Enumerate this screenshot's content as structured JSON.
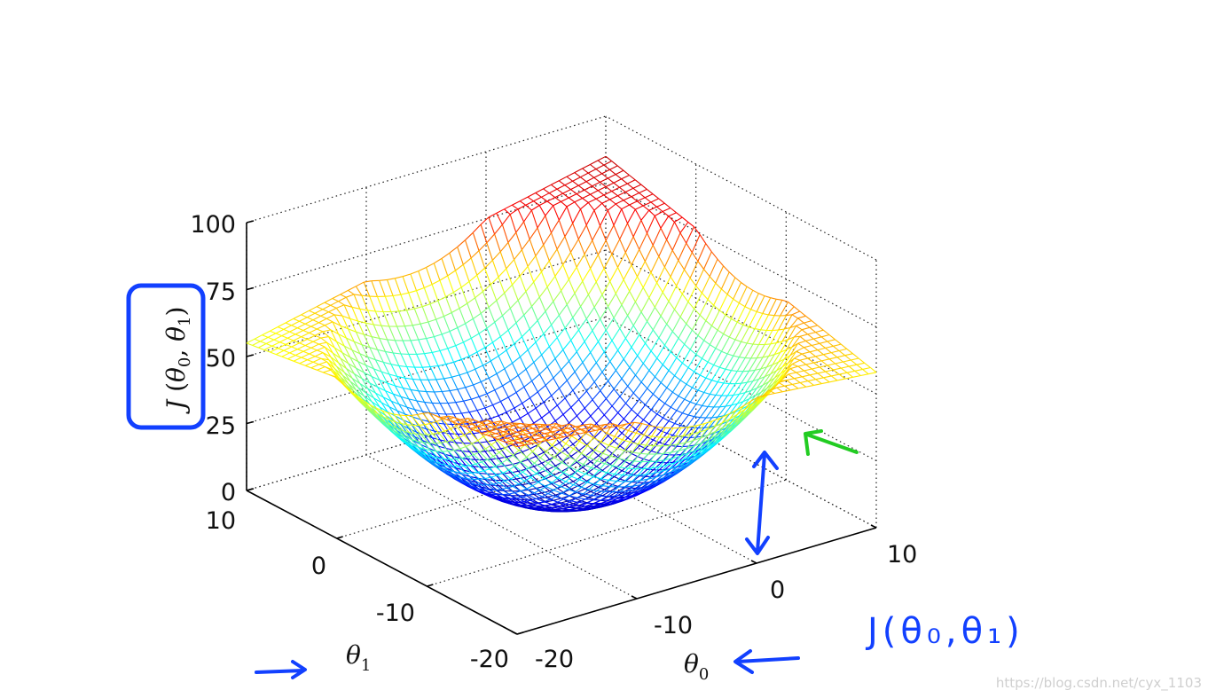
{
  "chart_data": {
    "type": "surface",
    "title": "",
    "function": "J(theta0, theta1) bowl-shaped cost surface (mesh colored by height, jet colormap)",
    "xlabel": "θ0",
    "ylabel": "θ1",
    "zlabel": "J(θ0,θ1)",
    "xlim": [
      -20,
      10
    ],
    "ylim": [
      -20,
      10
    ],
    "zlim": [
      0,
      100
    ],
    "x_ticks": [
      "-20",
      "-10",
      "0",
      "10"
    ],
    "y_ticks": [
      "-20",
      "-10",
      "0",
      "10"
    ],
    "z_ticks": [
      "0",
      "25",
      "50",
      "75",
      "100"
    ],
    "grid": true,
    "colormap": [
      "#00008f",
      "#0000ff",
      "#00ffff",
      "#ffff00",
      "#ff0000",
      "#800000"
    ],
    "surface_points": [
      {
        "theta0": -20,
        "theta1": -20,
        "J": 70
      },
      {
        "theta0": 10,
        "theta1": 10,
        "J": 85
      },
      {
        "theta0": 10,
        "theta1": -20,
        "J": 58
      },
      {
        "theta0": -20,
        "theta1": 10,
        "J": 55
      },
      {
        "theta0": -5,
        "theta1": -5,
        "J": 4
      }
    ]
  },
  "annotations": {
    "handwritten_label": "J(θ₀,θ₁)",
    "watermark": "https://blog.csdn.net/cyx_1103",
    "box_color": "#1240ff",
    "arrow_color": "#1240ff",
    "green_arrow_color": "#22cc22"
  }
}
